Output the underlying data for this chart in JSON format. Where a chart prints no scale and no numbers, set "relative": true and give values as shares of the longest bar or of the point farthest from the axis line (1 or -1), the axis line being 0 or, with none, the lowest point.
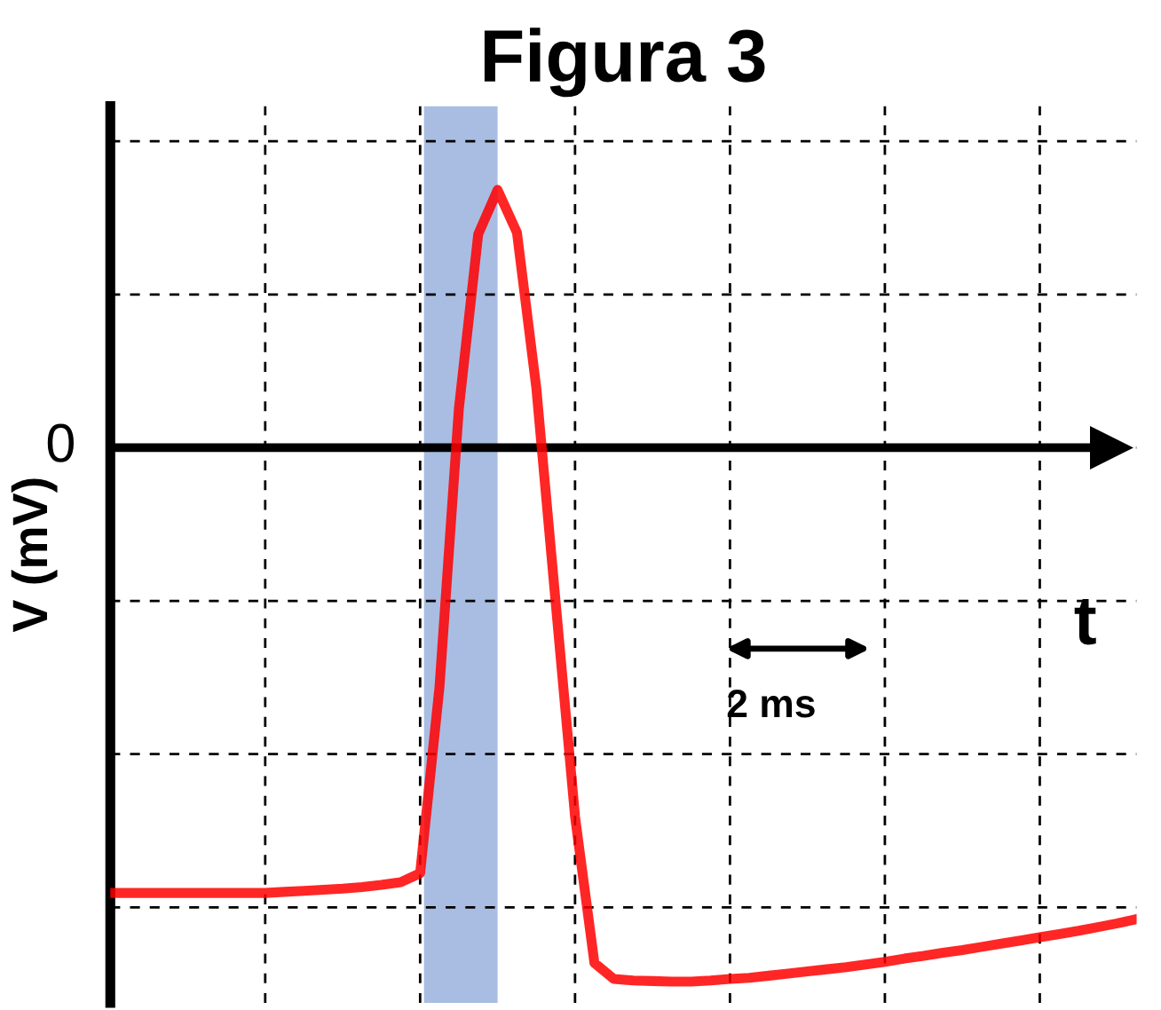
{
  "chart_data": {
    "type": "line",
    "title": "Figura 3",
    "xlabel": "t",
    "ylabel": "V (mV)",
    "relative": true,
    "categories": [
      null,
      null,
      null,
      null,
      null,
      null,
      null,
      null,
      null,
      null,
      null,
      null,
      null,
      null,
      null,
      null,
      null,
      null,
      null,
      null,
      null,
      null,
      null,
      null,
      null,
      null,
      null,
      null,
      null,
      null,
      null,
      null,
      null,
      null,
      null,
      null,
      null,
      null,
      null,
      null,
      null,
      null,
      null,
      null,
      null,
      null,
      null,
      null,
      null,
      null,
      null,
      null,
      null,
      null
    ],
    "grid": true,
    "line_style": "solid",
    "marker": "none",
    "ref_lines": [
      {
        "axis": "y",
        "value": 0,
        "label": "0",
        "color": "#000000"
      }
    ],
    "annotations": [
      "2 ms"
    ],
    "series": [
      {
        "color": "#ff0000",
        "values": [
          -0.834,
          -0.834,
          -0.834,
          -0.834,
          -0.834,
          -0.834,
          -0.834,
          -0.834,
          -0.834,
          -0.832,
          -0.83,
          -0.828,
          -0.826,
          -0.823,
          -0.819,
          -0.814,
          -0.797,
          -0.448,
          0.073,
          0.4,
          0.483,
          0.403,
          0.112,
          -0.29,
          -0.691,
          -0.965,
          -0.995,
          -0.998,
          -0.999,
          -1.0,
          -1.0,
          -0.998,
          -0.995,
          -0.993,
          -0.989,
          -0.985,
          -0.981,
          -0.977,
          -0.973,
          -0.968,
          -0.963,
          -0.957,
          -0.952,
          -0.946,
          -0.941,
          -0.935,
          -0.929,
          -0.923,
          -0.917,
          -0.911,
          -0.905,
          -0.898,
          -0.891,
          -0.883
        ]
      }
    ]
  }
}
